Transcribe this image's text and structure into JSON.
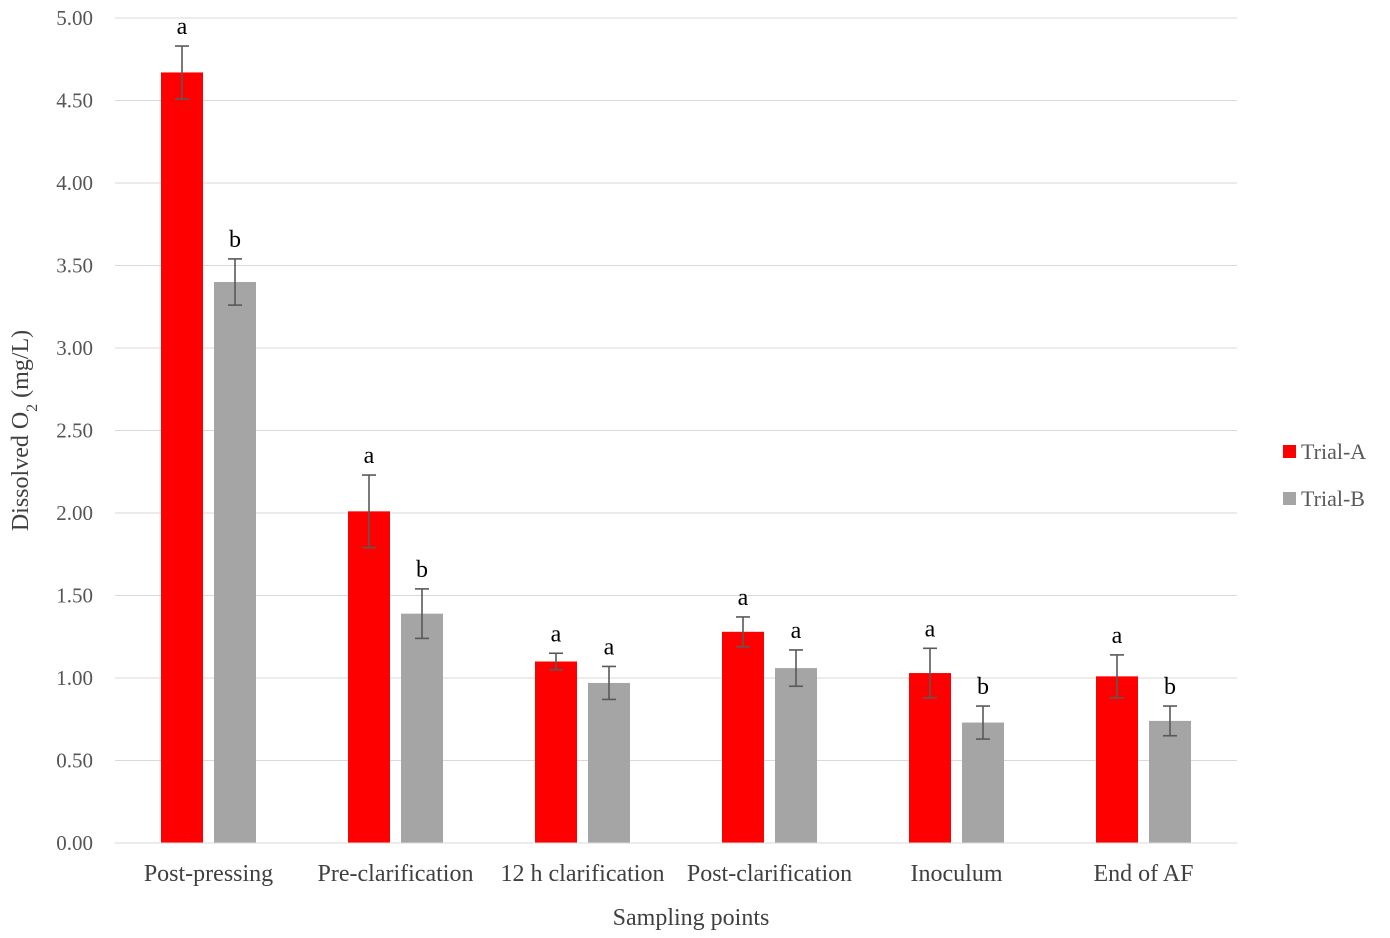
{
  "chart_data": {
    "type": "bar",
    "title": "",
    "xlabel": "Sampling points",
    "ylabel": "Dissolved O",
    "ylabel_subscript": "2",
    "ylabel_unit": " (mg/L)",
    "ylim": [
      0,
      5
    ],
    "yticks": [
      "0.00",
      "0.50",
      "1.00",
      "1.50",
      "2.00",
      "2.50",
      "3.00",
      "3.50",
      "4.00",
      "4.50",
      "5.00"
    ],
    "grid": true,
    "legend_position": "right",
    "categories": [
      "Post-pressing",
      "Pre-clarification",
      "12 h clarification",
      "Post-clarification",
      "Inoculum",
      "End of AF"
    ],
    "series": [
      {
        "name": "Trial-A",
        "color": "#ff0000",
        "values": [
          4.67,
          2.01,
          1.1,
          1.28,
          1.03,
          1.01
        ],
        "errors": [
          0.16,
          0.22,
          0.05,
          0.09,
          0.15,
          0.13
        ],
        "labels": [
          "a",
          "a",
          "a",
          "a",
          "a",
          "a"
        ]
      },
      {
        "name": "Trial-B",
        "color": "#a5a5a5",
        "values": [
          3.4,
          1.39,
          0.97,
          1.06,
          0.73,
          0.74
        ],
        "errors": [
          0.14,
          0.15,
          0.1,
          0.11,
          0.1,
          0.09
        ],
        "labels": [
          "b",
          "b",
          "a",
          "a",
          "b",
          "b"
        ]
      }
    ]
  }
}
